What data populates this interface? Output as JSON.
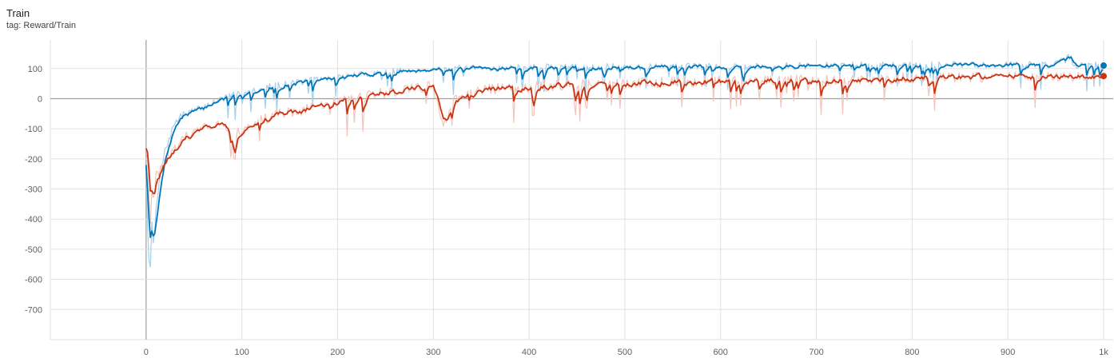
{
  "header": {
    "title": "Train",
    "tag": "tag: Reward/Train"
  },
  "colors": {
    "series_a": "#0077bb",
    "series_a_raw": "#a6cfe9",
    "series_b": "#cc3311",
    "series_b_raw": "#f2c4bb",
    "grid": "#e0e0e0",
    "axis_zero": "#9e9e9e"
  },
  "chart_data": {
    "type": "line",
    "title": "Train",
    "subtitle": "tag: Reward/Train",
    "xlabel": "",
    "ylabel": "",
    "xlim": [
      -100,
      1010
    ],
    "ylim": [
      -800,
      195
    ],
    "grid": true,
    "x_ticks": [
      0,
      100,
      200,
      300,
      400,
      500,
      600,
      700,
      800,
      900,
      1000
    ],
    "x_tick_labels": [
      "0",
      "100",
      "200",
      "300",
      "400",
      "500",
      "600",
      "700",
      "800",
      "900",
      "1k"
    ],
    "y_ticks": [
      100,
      0,
      -100,
      -200,
      -300,
      -400,
      -500,
      -600,
      -700
    ],
    "y_tick_labels": [
      "100",
      "0",
      "-100",
      "-200",
      "-300",
      "-400",
      "-500",
      "-600",
      "-700"
    ],
    "series": [
      {
        "x": [
          0,
          2,
          4,
          6,
          8,
          10,
          15,
          20,
          30,
          40,
          50,
          60,
          70,
          80,
          90,
          100,
          120,
          140,
          160,
          180,
          200,
          220,
          240,
          260,
          280,
          300,
          350,
          400,
          450,
          500,
          550,
          600,
          650,
          700,
          750,
          800,
          850,
          900,
          950,
          965,
          970,
          1000
        ],
        "values": [
          -230,
          -500,
          -590,
          -420,
          -500,
          -380,
          -250,
          -170,
          -80,
          -50,
          -40,
          -30,
          -10,
          0,
          10,
          20,
          35,
          45,
          55,
          65,
          70,
          78,
          85,
          90,
          95,
          98,
          100,
          103,
          104,
          105,
          106,
          107,
          108,
          109,
          110,
          111,
          112,
          113,
          112,
          140,
          110,
          110
        ]
      },
      {
        "x": [
          0,
          2,
          4,
          6,
          8,
          10,
          15,
          20,
          30,
          40,
          50,
          60,
          70,
          80,
          90,
          92,
          95,
          100,
          120,
          140,
          160,
          180,
          200,
          220,
          240,
          260,
          280,
          300,
          310,
          320,
          350,
          400,
          450,
          500,
          550,
          600,
          650,
          700,
          750,
          800,
          850,
          900,
          950,
          1000
        ],
        "values": [
          -150,
          -230,
          -430,
          -300,
          -360,
          -260,
          -240,
          -200,
          -160,
          -130,
          -120,
          -100,
          -90,
          -80,
          -130,
          -230,
          -110,
          -100,
          -70,
          -50,
          -40,
          -20,
          -10,
          5,
          15,
          25,
          35,
          40,
          -100,
          -10,
          30,
          40,
          45,
          50,
          55,
          58,
          60,
          62,
          65,
          68,
          70,
          72,
          74,
          75
        ]
      }
    ]
  }
}
